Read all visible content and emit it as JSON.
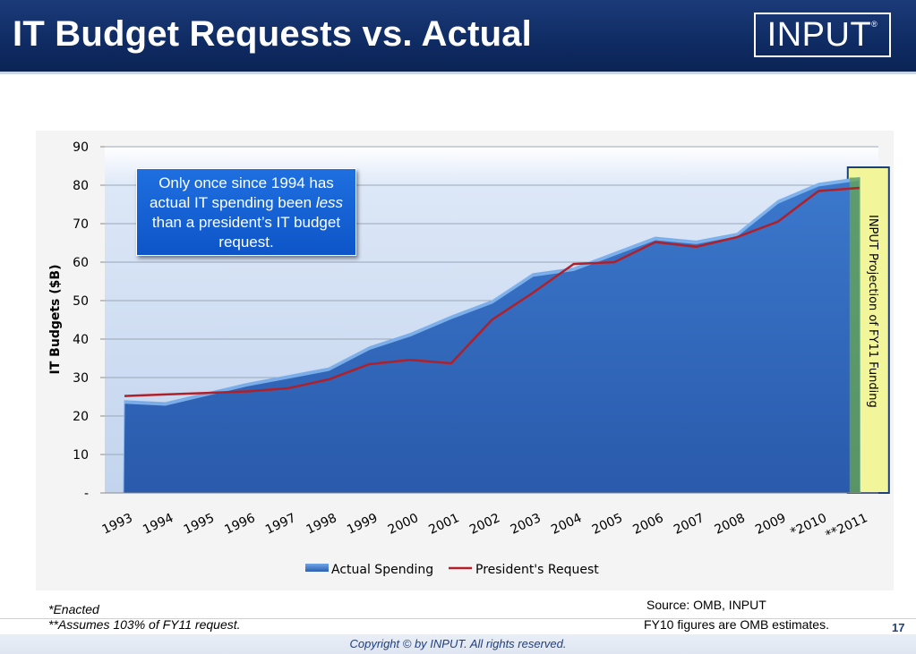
{
  "header": {
    "title": "IT Budget Requests vs. Actual",
    "logo_text": "INPUT",
    "logo_mark": "®"
  },
  "callout": {
    "line1": "Only once since 1994 has actual IT spending been",
    "emphasis": "less",
    "line2": "than a president’s IT budget request."
  },
  "notes": {
    "enacted": "*Enacted",
    "assumes": "**Assumes 103% of FY11 request."
  },
  "source": {
    "line1": "Source: OMB, INPUT",
    "line2": "FY10 figures are OMB estimates."
  },
  "footer": {
    "copyright": "Copyright © by INPUT. All rights reserved.",
    "page_number": "17"
  },
  "colors": {
    "header_bg": "#0f2b63",
    "area_fill": "#3f7fd0",
    "request_line": "#b0202a",
    "projection_fill": "#f2f59a",
    "plot_bg_top": "#dde8f8"
  },
  "chart_data": {
    "type": "area",
    "title": "",
    "xlabel": "",
    "ylabel": "IT Budgets ($B)",
    "categories": [
      "1993",
      "1994",
      "1995",
      "1996",
      "1997",
      "1998",
      "1999",
      "2000",
      "2001",
      "2002",
      "2003",
      "2004",
      "2005",
      "2006",
      "2007",
      "2008",
      "2009",
      "*2010",
      "**2011"
    ],
    "series": [
      {
        "name": "Actual Spending",
        "type": "area",
        "values": [
          24,
          23.5,
          26,
          28.5,
          30.5,
          32.5,
          38,
          41.5,
          46,
          50,
          57,
          58.5,
          62.5,
          66.5,
          65.5,
          67.5,
          76,
          80.5,
          82
        ]
      },
      {
        "name": "President's Request",
        "type": "line",
        "values": [
          25.2,
          25.6,
          26,
          26.4,
          27.2,
          29.5,
          33.5,
          34.6,
          33.7,
          45,
          52,
          59.5,
          60,
          65.2,
          64,
          66.5,
          70.5,
          78.5,
          79.3
        ]
      }
    ],
    "ylim": [
      0,
      90
    ],
    "yticks": [
      "-",
      "10",
      "20",
      "30",
      "40",
      "50",
      "60",
      "70",
      "80",
      "90"
    ],
    "grid": true,
    "legend": "bottom",
    "annotations": [
      {
        "text": "INPUT Projection of FY11 Funding",
        "category": "**2011"
      }
    ]
  }
}
